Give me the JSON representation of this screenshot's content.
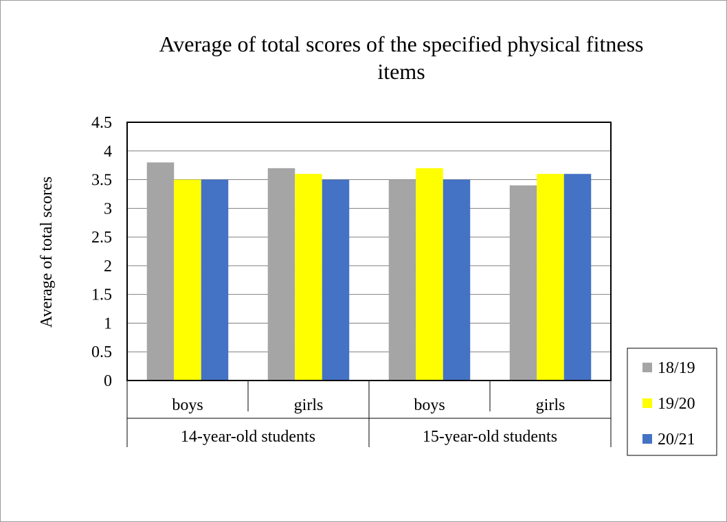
{
  "chart_data": {
    "type": "bar",
    "title_lines": [
      "Average of total scores of the specified physical fitness",
      "items"
    ],
    "ylabel": "Average of total scores",
    "xlabel": "",
    "ylim": [
      0,
      4.5
    ],
    "ytick_step": 0.5,
    "yticks": [
      "0",
      "0.5",
      "1",
      "1.5",
      "2",
      "2.5",
      "3",
      "3.5",
      "4",
      "4.5"
    ],
    "categories": [
      "boys",
      "girls",
      "boys",
      "girls"
    ],
    "groups": [
      {
        "label": "14-year-old students",
        "span": 2
      },
      {
        "label": "15-year-old students",
        "span": 2
      }
    ],
    "series": [
      {
        "name": "18/19",
        "color": "#a5a5a5",
        "values": [
          3.8,
          3.7,
          3.5,
          3.4
        ]
      },
      {
        "name": "19/20",
        "color": "#ffff00",
        "values": [
          3.5,
          3.6,
          3.7,
          3.6
        ]
      },
      {
        "name": "20/21",
        "color": "#4472c4",
        "values": [
          3.5,
          3.5,
          3.5,
          3.6
        ]
      }
    ],
    "grid": true,
    "legend_position": "bottom-right"
  }
}
